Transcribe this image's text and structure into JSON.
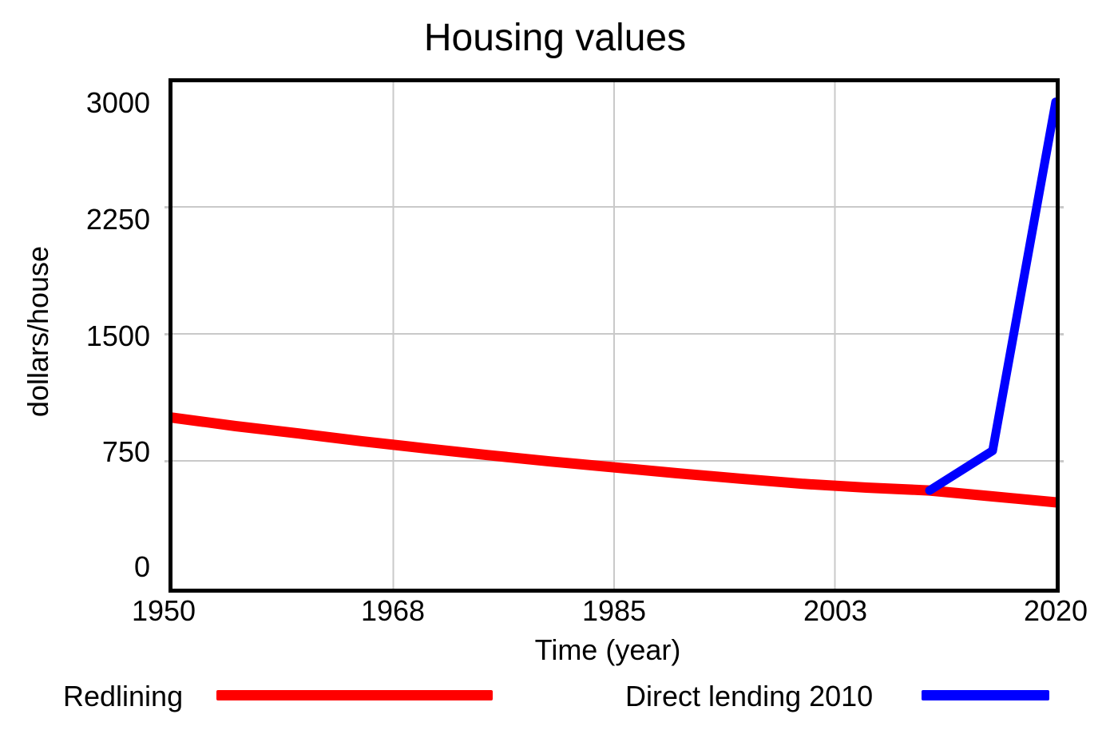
{
  "colors": {
    "background": "#ffffff",
    "frame": "#000000",
    "grid": "#c9c9c9",
    "redlining_line": "#ff0000",
    "direct_lending_line": "#0000ff",
    "text": "#000000"
  },
  "chart_data": {
    "type": "line",
    "title": "Housing values",
    "xlabel": "Time (year)",
    "ylabel": "dollars/house",
    "xlim": [
      1950,
      2020
    ],
    "ylim": [
      0,
      3000
    ],
    "x_ticks": [
      1950,
      1968,
      1985,
      2003,
      2020
    ],
    "y_ticks": [
      0,
      750,
      1500,
      2250,
      3000
    ],
    "grid": true,
    "legend_position": "bottom",
    "series": [
      {
        "name": "Redlining",
        "color": "#ff0000",
        "stroke_width": 13,
        "x": [
          1950,
          1955,
          1960,
          1965,
          1970,
          1975,
          1980,
          1985,
          1990,
          1995,
          2000,
          2005,
          2010,
          2015,
          2020
        ],
        "values": [
          1005,
          955,
          912,
          866,
          824,
          784,
          746,
          712,
          677,
          645,
          614,
          592,
          575,
          540,
          505
        ]
      },
      {
        "name": "Direct lending 2010",
        "color": "#0000ff",
        "stroke_width": 11,
        "x": [
          2010,
          2015,
          2020
        ],
        "values": [
          575,
          810,
          2870
        ]
      }
    ]
  }
}
